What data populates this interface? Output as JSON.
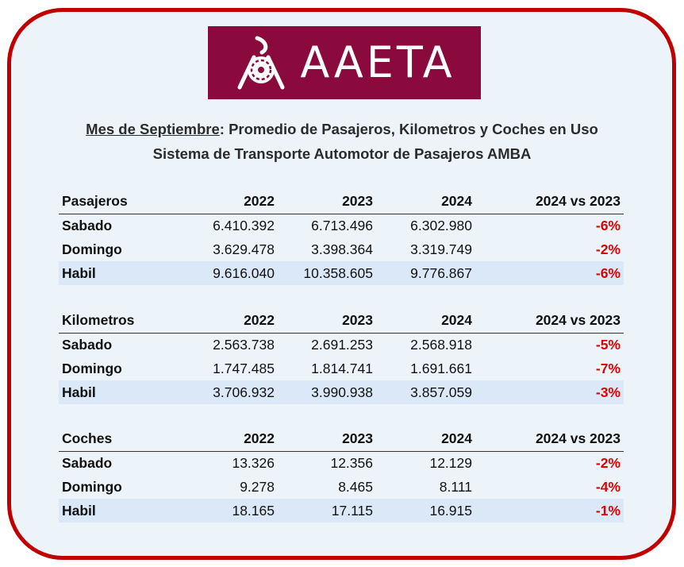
{
  "logo": {
    "text": "AAETA",
    "bg_color": "#8a0a3e",
    "icon": "bus-wheel-logo-icon"
  },
  "title": {
    "month": "Mes de Septiembre",
    "rest": ": Promedio de Pasajeros, Kilometros y Coches en Uso",
    "line2": "Sistema de Transporte Automotor de Pasajeros AMBA"
  },
  "colors": {
    "border": "#c00000",
    "negative": "#e00000",
    "highlight_row": "#dbe8f7"
  },
  "tables": [
    {
      "headers": [
        "Pasajeros",
        "2022",
        "2023",
        "2024",
        "2024 vs 2023"
      ],
      "rows": [
        {
          "label": "Sabado",
          "v2022": "6.410.392",
          "v2023": "6.713.496",
          "v2024": "6.302.980",
          "change": "-6%"
        },
        {
          "label": "Domingo",
          "v2022": "3.629.478",
          "v2023": "3.398.364",
          "v2024": "3.319.749",
          "change": "-2%"
        },
        {
          "label": "Habil",
          "v2022": "9.616.040",
          "v2023": "10.358.605",
          "v2024": "9.776.867",
          "change": "-6%"
        }
      ]
    },
    {
      "headers": [
        "Kilometros",
        "2022",
        "2023",
        "2024",
        "2024 vs 2023"
      ],
      "rows": [
        {
          "label": "Sabado",
          "v2022": "2.563.738",
          "v2023": "2.691.253",
          "v2024": "2.568.918",
          "change": "-5%"
        },
        {
          "label": "Domingo",
          "v2022": "1.747.485",
          "v2023": "1.814.741",
          "v2024": "1.691.661",
          "change": "-7%"
        },
        {
          "label": "Habil",
          "v2022": "3.706.932",
          "v2023": "3.990.938",
          "v2024": "3.857.059",
          "change": "-3%"
        }
      ]
    },
    {
      "headers": [
        "Coches",
        "2022",
        "2023",
        "2024",
        "2024 vs 2023"
      ],
      "rows": [
        {
          "label": "Sabado",
          "v2022": "13.326",
          "v2023": "12.356",
          "v2024": "12.129",
          "change": "-2%"
        },
        {
          "label": "Domingo",
          "v2022": "9.278",
          "v2023": "8.465",
          "v2024": "8.111",
          "change": "-4%"
        },
        {
          "label": "Habil",
          "v2022": "18.165",
          "v2023": "17.115",
          "v2024": "16.915",
          "change": "-1%"
        }
      ]
    }
  ]
}
